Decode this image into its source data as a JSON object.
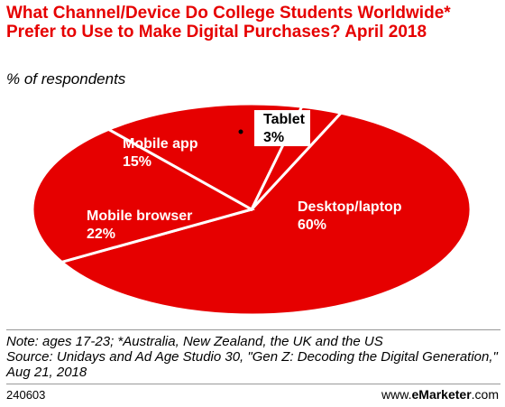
{
  "chart_data": {
    "type": "pie",
    "title": "What Channel/Device Do College Students Worldwide* Prefer to Use to Make Digital Purchases? April 2018",
    "subtitle": "% of respondents",
    "slices": [
      {
        "label": "Desktop/laptop",
        "value": 60,
        "value_label": "60%"
      },
      {
        "label": "Mobile browser",
        "value": 22,
        "value_label": "22%"
      },
      {
        "label": "Mobile app",
        "value": 15,
        "value_label": "15%"
      },
      {
        "label": "Tablet",
        "value": 3,
        "value_label": "3%"
      }
    ],
    "colors": {
      "slice": "#e60000",
      "border": "#ffffff",
      "label": "#ffffff",
      "tablet_label": "#000000"
    }
  },
  "notes": {
    "note": "Note: ages 17-23; *Australia, New Zealand, the UK and the US",
    "source": "Source: Unidays and Ad Age Studio 30, \"Gen Z: Decoding the Digital Generation,\" Aug 21, 2018"
  },
  "footer": {
    "chart_id": "240603",
    "site_prefix": "www.",
    "site_brand": "eMarketer",
    "site_suffix": ".com"
  }
}
